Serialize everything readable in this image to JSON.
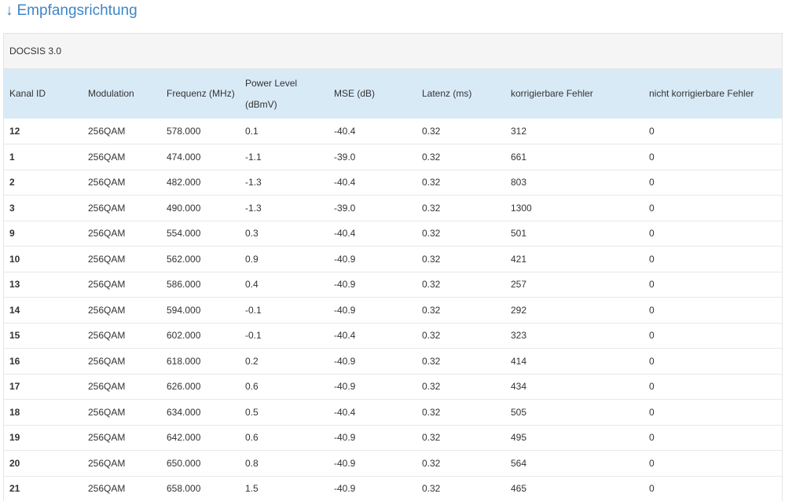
{
  "heading": {
    "arrow": "↓",
    "title": "Empfangsrichtung"
  },
  "panel": {
    "title": "DOCSIS 3.0"
  },
  "table": {
    "columns": [
      "Kanal ID",
      "Modulation",
      "Frequenz (MHz)",
      "Power Level (dBmV)",
      "MSE (dB)",
      "Latenz (ms)",
      "korrigierbare Fehler",
      "nicht korrigierbare Fehler"
    ],
    "rows": [
      [
        "12",
        "256QAM",
        "578.000",
        "0.1",
        "-40.4",
        "0.32",
        "312",
        "0"
      ],
      [
        "1",
        "256QAM",
        "474.000",
        "-1.1",
        "-39.0",
        "0.32",
        "661",
        "0"
      ],
      [
        "2",
        "256QAM",
        "482.000",
        "-1.3",
        "-40.4",
        "0.32",
        "803",
        "0"
      ],
      [
        "3",
        "256QAM",
        "490.000",
        "-1.3",
        "-39.0",
        "0.32",
        "1300",
        "0"
      ],
      [
        "9",
        "256QAM",
        "554.000",
        "0.3",
        "-40.4",
        "0.32",
        "501",
        "0"
      ],
      [
        "10",
        "256QAM",
        "562.000",
        "0.9",
        "-40.9",
        "0.32",
        "421",
        "0"
      ],
      [
        "13",
        "256QAM",
        "586.000",
        "0.4",
        "-40.9",
        "0.32",
        "257",
        "0"
      ],
      [
        "14",
        "256QAM",
        "594.000",
        "-0.1",
        "-40.9",
        "0.32",
        "292",
        "0"
      ],
      [
        "15",
        "256QAM",
        "602.000",
        "-0.1",
        "-40.4",
        "0.32",
        "323",
        "0"
      ],
      [
        "16",
        "256QAM",
        "618.000",
        "0.2",
        "-40.9",
        "0.32",
        "414",
        "0"
      ],
      [
        "17",
        "256QAM",
        "626.000",
        "0.6",
        "-40.9",
        "0.32",
        "434",
        "0"
      ],
      [
        "18",
        "256QAM",
        "634.000",
        "0.5",
        "-40.4",
        "0.32",
        "505",
        "0"
      ],
      [
        "19",
        "256QAM",
        "642.000",
        "0.6",
        "-40.9",
        "0.32",
        "495",
        "0"
      ],
      [
        "20",
        "256QAM",
        "650.000",
        "0.8",
        "-40.9",
        "0.32",
        "564",
        "0"
      ],
      [
        "21",
        "256QAM",
        "658.000",
        "1.5",
        "-40.9",
        "0.32",
        "465",
        "0"
      ]
    ]
  },
  "colors": {
    "heading": "#3f86c7",
    "table_header_bg": "#d9eaf7",
    "panel_header_bg": "#f5f5f5"
  }
}
